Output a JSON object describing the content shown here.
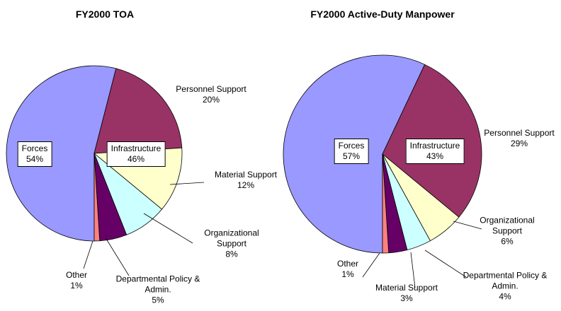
{
  "chart_data": [
    {
      "type": "pie",
      "title": "FY2000 TOA",
      "categories": [
        "Forces",
        "Personnel Support",
        "Material Support",
        "Organizational Support",
        "Departmental Policy & Admin.",
        "Other"
      ],
      "values": [
        54,
        20,
        12,
        8,
        5,
        1
      ],
      "value_labels": [
        "54%",
        "20%",
        "12%",
        "8%",
        "5%",
        "1%"
      ],
      "colors": [
        "#9999ff",
        "#993366",
        "#ffffcc",
        "#ccffff",
        "#660066",
        "#ff8080"
      ],
      "annotations": [
        {
          "text": "Infrastructure",
          "value_label": "46%"
        }
      ]
    },
    {
      "type": "pie",
      "title": "FY2000 Active-Duty Manpower",
      "categories": [
        "Forces",
        "Personnel Support",
        "Organizational Support",
        "Departmental Policy & Admin.",
        "Material Support",
        "Other"
      ],
      "values": [
        57,
        29,
        6,
        4,
        3,
        1
      ],
      "value_labels": [
        "57%",
        "29%",
        "6%",
        "4%",
        "3%",
        "1%"
      ],
      "colors": [
        "#9999ff",
        "#993366",
        "#ffffcc",
        "#ccffff",
        "#660066",
        "#ff8080"
      ],
      "annotations": [
        {
          "text": "Infrastructure",
          "value_label": "43%"
        }
      ]
    }
  ]
}
